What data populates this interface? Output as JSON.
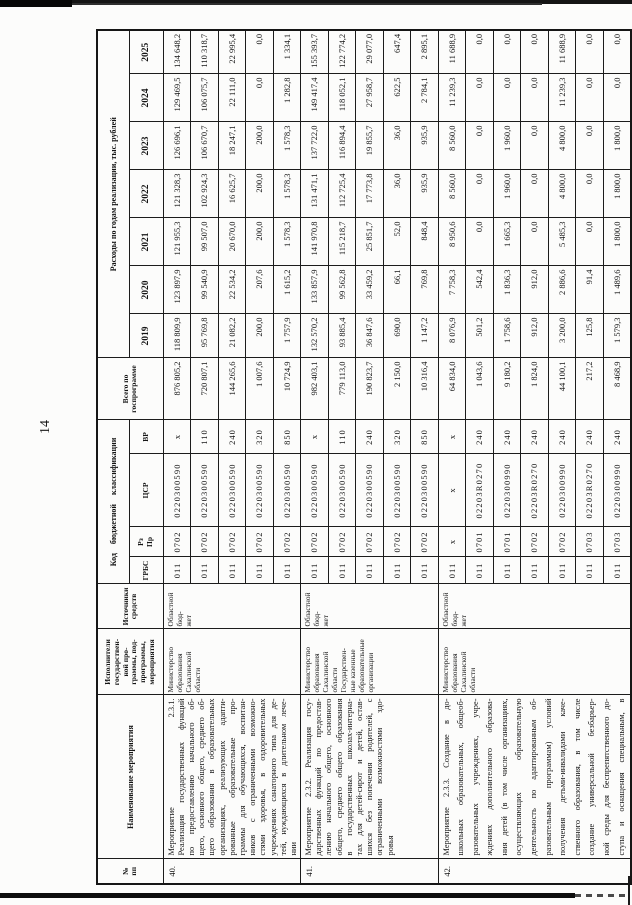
{
  "page": {
    "number": "14"
  },
  "table": {
    "headers": {
      "num": "№\nпп",
      "name": "Наименование мероприятия",
      "executor": "Исполнители\nгосударствен-\nной про-\nграммы, под-\nпрограммы,\nмероприятия",
      "source": "Источники\nсредств",
      "kbk": "Код бюджетной классификации",
      "grbs": "ГРБС",
      "rzpr": "Рз\nПр",
      "csr": "ЦСР",
      "vr": "ВР",
      "total": "Всего по\nгоспрограмме",
      "expenses": "Расходы по годам реализации, тыс. рублей"
    },
    "years": [
      "2019",
      "2020",
      "2021",
      "2022",
      "2023",
      "2024",
      "2025"
    ],
    "items": [
      {
        "num": "40.",
        "title_left": "Мероприятие",
        "title_right": "2.3.1.",
        "name_lines": [
          "Реализация государственных функций",
          "по предоставлению начального об-",
          "щего, основного общего, среднего об-",
          "щего образования в образовательных",
          "организациях, реализующих адапти-",
          "рованные образовательные про-",
          "граммы для обучающихся, воспитан-",
          "ников с ограниченными возможно-",
          "стями здоровья, в оздоровительных",
          "учреждениях санаторного типа для де-",
          "тей, нуждающихся в длительном лече-",
          "нии"
        ],
        "executor": "Министерство\nобразования\nСахалинской\nобласти",
        "source": "Областной бюд-\nжет",
        "rows": [
          {
            "grbs": "011",
            "rzpr": "0702",
            "csr": "0220300590",
            "vr": "х",
            "values": [
              "876 805,2",
              "118 809,9",
              "123 897,9",
              "121 955,3",
              "121 328,3",
              "126 696,1",
              "129 469,5",
              "134 648,2"
            ]
          },
          {
            "grbs": "011",
            "rzpr": "0702",
            "csr": "0220300590",
            "vr": "110",
            "values": [
              "720 807,1",
              "95 769,8",
              "99 540,9",
              "99 507,0",
              "102 924,3",
              "106 670,7",
              "106 075,7",
              "110 318,7"
            ]
          },
          {
            "grbs": "011",
            "rzpr": "0702",
            "csr": "0220300590",
            "vr": "240",
            "values": [
              "144 265,6",
              "21 082,2",
              "22 534,2",
              "20 670,0",
              "16 625,7",
              "18 247,1",
              "22 111,0",
              "22 995,4"
            ]
          },
          {
            "grbs": "011",
            "rzpr": "0702",
            "csr": "0220300590",
            "vr": "320",
            "values": [
              "1 007,6",
              "200,0",
              "207,6",
              "200,0",
              "200,0",
              "200,0",
              "0,0",
              "0,0"
            ]
          },
          {
            "grbs": "011",
            "rzpr": "0702",
            "csr": "0220300590",
            "vr": "850",
            "values": [
              "10 724,9",
              "1 757,9",
              "1 615,2",
              "1 578,3",
              "1 578,3",
              "1 578,3",
              "1 282,8",
              "1 334,1"
            ]
          }
        ]
      },
      {
        "num": "41.",
        "name_lines": [
          "Мероприятие 2.3.2. Реализация госу-",
          "дарственных функций по предостав-",
          "лению начального общего, основного",
          "общего, среднего общего образования",
          "в государственных школах-интерна-",
          "тах для детей-сирот и детей, остав-",
          "шихся без попечения родителей, с",
          "ограниченными возможностями здо-",
          "ровья"
        ],
        "executor": "Министерство\nобразования\nСахалинской\nобласти\nГосударствен-\nные казенные\nобразовательные\nорганизации",
        "source": "Областной бюд-\nжет",
        "rows": [
          {
            "grbs": "011",
            "rzpr": "0702",
            "csr": "0220300590",
            "vr": "х",
            "values": [
              "982 403,1",
              "132 570,2",
              "133 857,9",
              "141 970,8",
              "131 471,1",
              "137 722,0",
              "149 417,4",
              "155 393,7"
            ]
          },
          {
            "grbs": "011",
            "rzpr": "0702",
            "csr": "0220300590",
            "vr": "110",
            "values": [
              "779 113,0",
              "93 885,4",
              "99 562,8",
              "115 218,7",
              "112 725,4",
              "116 894,4",
              "118 052,1",
              "122 774,2"
            ]
          },
          {
            "grbs": "011",
            "rzpr": "0702",
            "csr": "0220300590",
            "vr": "240",
            "values": [
              "190 823,7",
              "36 847,6",
              "33 459,2",
              "25 851,7",
              "17 773,8",
              "19 855,7",
              "27 958,7",
              "29 077,0"
            ]
          },
          {
            "grbs": "011",
            "rzpr": "0702",
            "csr": "0220300590",
            "vr": "320",
            "values": [
              "2 150,0",
              "690,0",
              "66,1",
              "52,0",
              "36,0",
              "36,0",
              "622,5",
              "647,4"
            ]
          },
          {
            "grbs": "011",
            "rzpr": "0702",
            "csr": "0220300590",
            "vr": "850",
            "values": [
              "10 316,4",
              "1 147,2",
              "769,8",
              "848,4",
              "935,9",
              "935,9",
              "2 784,1",
              "2 895,1"
            ]
          }
        ]
      },
      {
        "num": "42.",
        "name_lines": [
          "Мероприятие 2.3.3. Создание в до-",
          "школьных образовательных, общеоб-",
          "разовательных учреждениях, учре-",
          "ждениях дополнительного образова-",
          "ния детей (в том числе организациях,",
          "осуществляющих образовательную",
          "деятельность по адаптированным об-",
          "разовательным программам) условий",
          "получения детьми-инвалидами каче-",
          "ственного образования, в том числе",
          "создание универсальной безбарьер-",
          "ной среды для беспрепятственного до-",
          "ступа и оснащения специальным, в"
        ],
        "executor": "Министерство\nобразования\nСахалинской\nобласти",
        "source": "Областной бюд-\nжет",
        "rows": [
          {
            "grbs": "011",
            "rzpr": "х",
            "csr": "х",
            "vr": "х",
            "values": [
              "64 834,0",
              "8 076,9",
              "7 758,3",
              "8 950,6",
              "8 560,0",
              "8 560,0",
              "11 239,3",
              "11 688,9"
            ]
          },
          {
            "grbs": "011",
            "rzpr": "0701",
            "csr": "02203R0270",
            "vr": "240",
            "values": [
              "1 043,6",
              "501,2",
              "542,4",
              "0,0",
              "0,0",
              "0,0",
              "0,0",
              "0,0"
            ]
          },
          {
            "grbs": "011",
            "rzpr": "0701",
            "csr": "0220300990",
            "vr": "240",
            "values": [
              "9 180,2",
              "1 758,6",
              "1 836,3",
              "1 665,3",
              "1 960,0",
              "1 960,0",
              "0,0",
              "0,0"
            ]
          },
          {
            "grbs": "011",
            "rzpr": "0702",
            "csr": "02203R0270",
            "vr": "240",
            "values": [
              "1 824,0",
              "912,0",
              "912,0",
              "0,0",
              "0,0",
              "0,0",
              "0,0",
              "0,0"
            ]
          },
          {
            "grbs": "011",
            "rzpr": "0702",
            "csr": "0220300990",
            "vr": "240",
            "values": [
              "44 100,1",
              "3 200,0",
              "2 886,6",
              "5 485,3",
              "4 800,0",
              "4 800,0",
              "11 239,3",
              "11 688,9"
            ]
          },
          {
            "grbs": "011",
            "rzpr": "0703",
            "csr": "02203R0270",
            "vr": "240",
            "values": [
              "217,2",
              "125,8",
              "91,4",
              "0,0",
              "0,0",
              "0,0",
              "0,0",
              "0,0"
            ]
          },
          {
            "grbs": "011",
            "rzpr": "0703",
            "csr": "0220300990",
            "vr": "240",
            "values": [
              "8 468,9",
              "1 579,3",
              "1 489,6",
              "1 800,0",
              "1 800,0",
              "1 800,0",
              "0,0",
              "0,0"
            ]
          }
        ]
      }
    ]
  }
}
